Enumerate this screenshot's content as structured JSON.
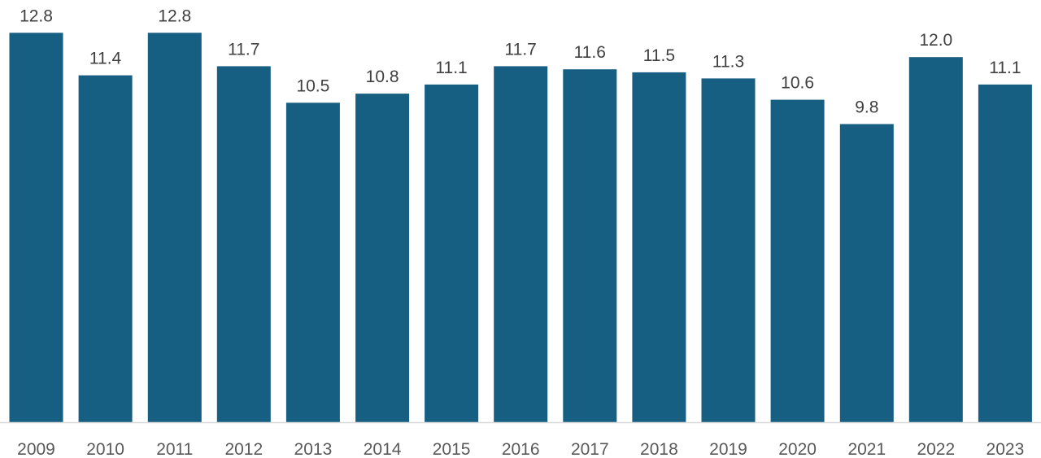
{
  "chart_data": {
    "type": "bar",
    "categories": [
      "2009",
      "2010",
      "2011",
      "2012",
      "2013",
      "2014",
      "2015",
      "2016",
      "2017",
      "2018",
      "2019",
      "2020",
      "2021",
      "2022",
      "2023"
    ],
    "values": [
      12.8,
      11.4,
      12.8,
      11.7,
      10.5,
      10.8,
      11.1,
      11.7,
      11.6,
      11.5,
      11.3,
      10.6,
      9.8,
      12.0,
      11.1
    ],
    "value_labels": [
      "12.8",
      "11.4",
      "12.8",
      "11.7",
      "10.5",
      "10.8",
      "11.1",
      "11.7",
      "11.6",
      "11.5",
      "11.3",
      "10.6",
      "9.8",
      "12.0",
      "11.1"
    ],
    "title": "",
    "xlabel": "",
    "ylabel": "",
    "ylim": [
      0,
      12.8
    ],
    "grid": false,
    "legend": "none",
    "colors": {
      "bar": "#175f82",
      "axis": "#d9d9d9",
      "value_label": "#404040",
      "tick_label": "#595959"
    }
  }
}
